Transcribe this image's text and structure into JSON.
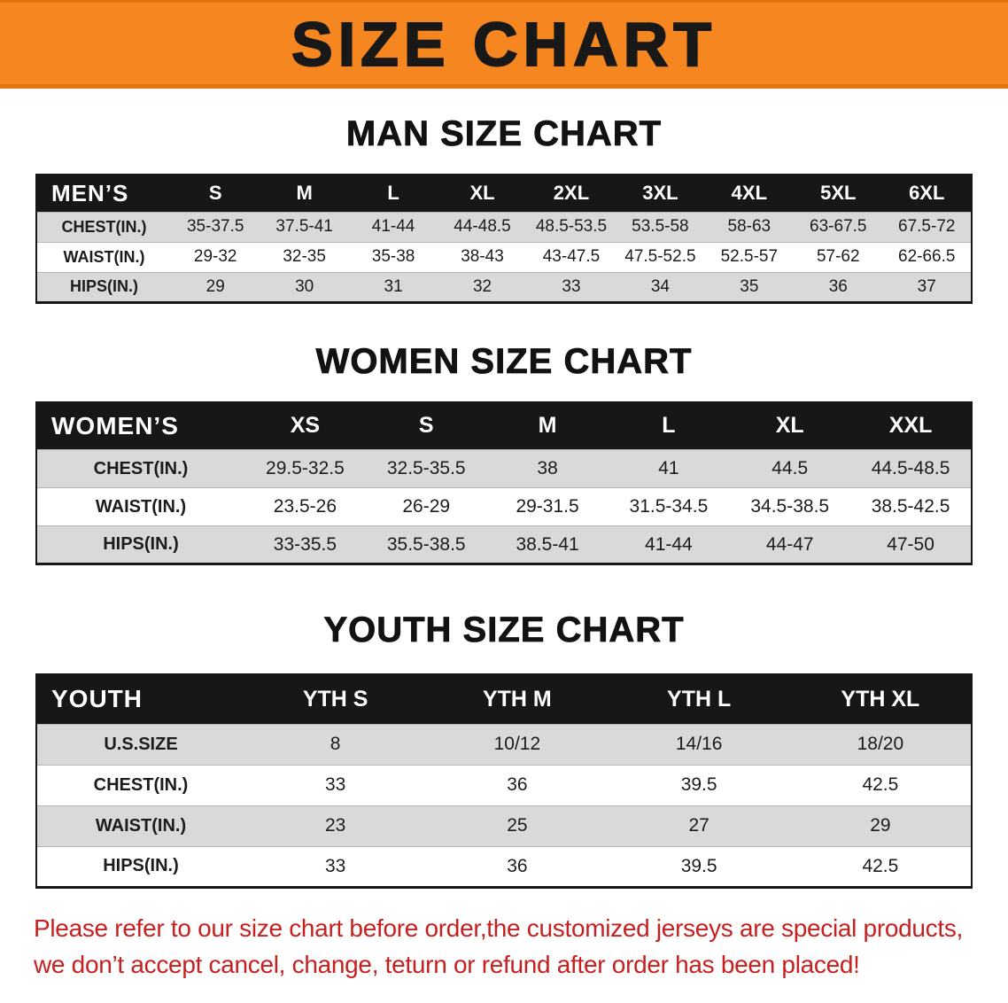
{
  "banner": {
    "title": "SIZE CHART"
  },
  "colors": {
    "banner_orange": "#f6861f",
    "table_header_black": "#171717",
    "row_gray": "#d9d9d9",
    "footer_red": "#c62020"
  },
  "chart_data": [
    {
      "type": "table",
      "title": "MAN SIZE CHART",
      "header_label": "MEN’S",
      "columns": [
        "S",
        "M",
        "L",
        "XL",
        "2XL",
        "3XL",
        "4XL",
        "5XL",
        "6XL"
      ],
      "rows": [
        {
          "label": "CHEST(IN.)",
          "values": [
            "35-37.5",
            "37.5-41",
            "41-44",
            "44-48.5",
            "48.5-53.5",
            "53.5-58",
            "58-63",
            "63-67.5",
            "67.5-72"
          ]
        },
        {
          "label": "WAIST(IN.)",
          "values": [
            "29-32",
            "32-35",
            "35-38",
            "38-43",
            "43-47.5",
            "47.5-52.5",
            "52.5-57",
            "57-62",
            "62-66.5"
          ]
        },
        {
          "label": "HIPS(IN.)",
          "values": [
            "29",
            "30",
            "31",
            "32",
            "33",
            "34",
            "35",
            "36",
            "37"
          ]
        }
      ]
    },
    {
      "type": "table",
      "title": "WOMEN SIZE CHART",
      "header_label": "WOMEN’S",
      "columns": [
        "XS",
        "S",
        "M",
        "L",
        "XL",
        "XXL"
      ],
      "rows": [
        {
          "label": "CHEST(IN.)",
          "values": [
            "29.5-32.5",
            "32.5-35.5",
            "38",
            "41",
            "44.5",
            "44.5-48.5"
          ]
        },
        {
          "label": "WAIST(IN.)",
          "values": [
            "23.5-26",
            "26-29",
            "29-31.5",
            "31.5-34.5",
            "34.5-38.5",
            "38.5-42.5"
          ]
        },
        {
          "label": "HIPS(IN.)",
          "values": [
            "33-35.5",
            "35.5-38.5",
            "38.5-41",
            "41-44",
            "44-47",
            "47-50"
          ]
        }
      ]
    },
    {
      "type": "table",
      "title": "YOUTH SIZE CHART",
      "header_label": "YOUTH",
      "columns": [
        "YTH S",
        "YTH M",
        "YTH L",
        "YTH XL"
      ],
      "rows": [
        {
          "label": "U.S.SIZE",
          "values": [
            "8",
            "10/12",
            "14/16",
            "18/20"
          ]
        },
        {
          "label": "CHEST(IN.)",
          "values": [
            "33",
            "36",
            "39.5",
            "42.5"
          ]
        },
        {
          "label": "WAIST(IN.)",
          "values": [
            "23",
            "25",
            "27",
            "29"
          ]
        },
        {
          "label": "HIPS(IN.)",
          "values": [
            "33",
            "36",
            "39.5",
            "42.5"
          ]
        }
      ]
    }
  ],
  "footer": {
    "line1": "Please refer to our size chart before order,the customized jerseys are special products,",
    "line2": "we don’t accept cancel, change, teturn or refund after order has been placed!"
  }
}
